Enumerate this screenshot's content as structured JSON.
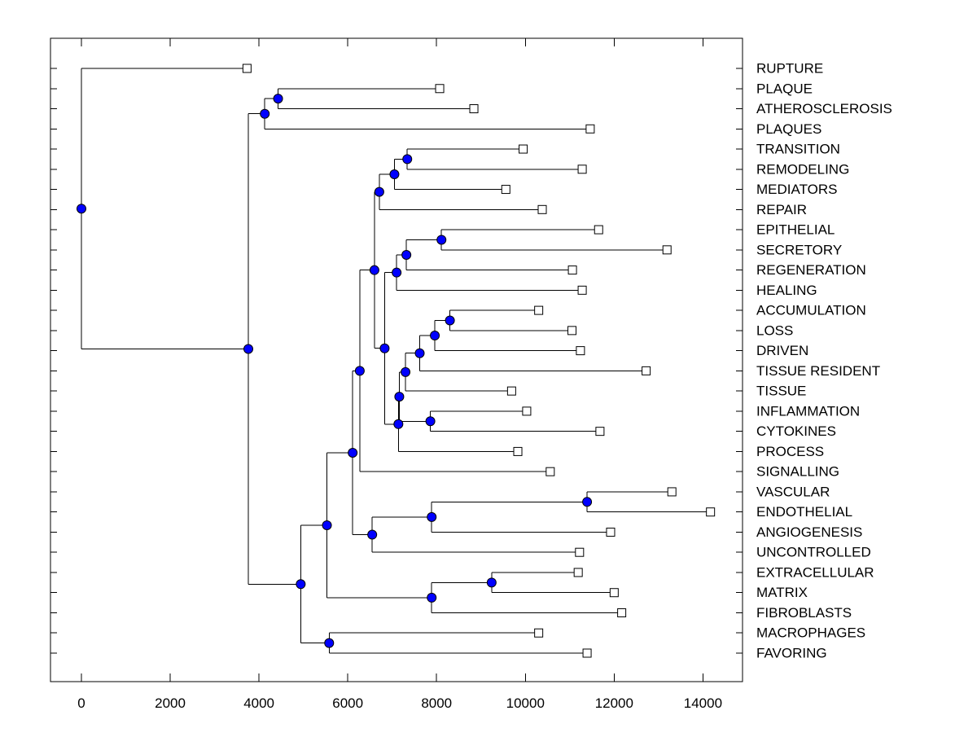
{
  "figure": {
    "kind": "phylogenetic-dendrogram",
    "background": "#ffffff"
  },
  "colors": {
    "line": "#000000",
    "box": "#000000",
    "internal_node_fill": "#0000ff",
    "internal_node_stroke": "#000000",
    "leaf_marker_fill": "#ffffff",
    "leaf_marker_stroke": "#000000",
    "text": "#000000"
  },
  "chart_data": {
    "type": "dendrogram",
    "orientation": "horizontal-right-labels",
    "title": "",
    "xlabel": "",
    "ylabel": "",
    "x_ticks": [
      0,
      2000,
      4000,
      6000,
      8000,
      10000,
      12000,
      14000
    ],
    "x_tick_labels": [
      "0",
      "2000",
      "4000",
      "6000",
      "8000",
      "10000",
      "12000",
      "14000"
    ],
    "xlim": [
      -760,
      14900
    ],
    "grid": false,
    "leaf_order_top_to_bottom": [
      "RUPTURE",
      "PLAQUE",
      "ATHEROSCLEROSIS",
      "PLAQUES",
      "TRANSITION",
      "REMODELING",
      "MEDIATORS",
      "REPAIR",
      "EPITHELIAL",
      "SECRETORY",
      "REGENERATION",
      "HEALING",
      "ACCUMULATION",
      "LOSS",
      "DRIVEN",
      "TISSUE RESIDENT",
      "TISSUE",
      "INFLAMMATION",
      "CYTOKINES",
      "PROCESS",
      "SIGNALLING",
      "VASCULAR",
      "ENDOTHELIAL",
      "ANGIOGENESIS",
      "UNCONTROLLED",
      "EXTRACELLULAR",
      "MATRIX",
      "FIBROBLASTS",
      "MACROPHAGES",
      "FAVORING"
    ],
    "tree": {
      "x": 0,
      "children": [
        {
          "label": "RUPTURE",
          "x": 3730
        },
        {
          "x": 3760,
          "children": [
            {
              "x": 4130,
              "children": [
                {
                  "x": 4430,
                  "children": [
                    {
                      "label": "PLAQUE",
                      "x": 8070
                    },
                    {
                      "label": "ATHEROSCLEROSIS",
                      "x": 8840
                    }
                  ]
                },
                {
                  "label": "PLAQUES",
                  "x": 11460
                }
              ]
            },
            {
              "x": 4940,
              "children": [
                {
                  "x": 5530,
                  "children": [
                    {
                      "x": 6110,
                      "children": [
                        {
                          "x": 6270,
                          "children": [
                            {
                              "x": 6600,
                              "children": [
                                {
                                  "x": 6710,
                                  "children": [
                                    {
                                      "x": 7050,
                                      "children": [
                                        {
                                          "x": 7340,
                                          "children": [
                                            {
                                              "label": "TRANSITION",
                                              "x": 9950
                                            },
                                            {
                                              "label": "REMODELING",
                                              "x": 11280
                                            }
                                          ]
                                        },
                                        {
                                          "label": "MEDIATORS",
                                          "x": 9560
                                        }
                                      ]
                                    },
                                    {
                                      "label": "REPAIR",
                                      "x": 10380
                                    }
                                  ]
                                },
                                {
                                  "x": 6830,
                                  "children": [
                                    {
                                      "x": 7100,
                                      "children": [
                                        {
                                          "x": 7320,
                                          "children": [
                                            {
                                              "x": 8110,
                                              "children": [
                                                {
                                                  "label": "EPITHELIAL",
                                                  "x": 11650
                                                },
                                                {
                                                  "label": "SECRETORY",
                                                  "x": 13190
                                                }
                                              ]
                                            },
                                            {
                                              "label": "REGENERATION",
                                              "x": 11060
                                            }
                                          ]
                                        },
                                        {
                                          "label": "HEALING",
                                          "x": 11280
                                        }
                                      ]
                                    },
                                    {
                                      "x": 7140,
                                      "children": [
                                        {
                                          "x": 7160,
                                          "children": [
                                            {
                                              "x": 7300,
                                              "children": [
                                                {
                                                  "x": 7620,
                                                  "children": [
                                                    {
                                                      "x": 7960,
                                                      "children": [
                                                        {
                                                          "x": 8300,
                                                          "children": [
                                                            {
                                                              "label": "ACCUMULATION",
                                                              "x": 10300
                                                            },
                                                            {
                                                              "label": "LOSS",
                                                              "x": 11050
                                                            }
                                                          ]
                                                        },
                                                        {
                                                          "label": "DRIVEN",
                                                          "x": 11240
                                                        }
                                                      ]
                                                    },
                                                    {
                                                      "label": "TISSUE RESIDENT",
                                                      "x": 12720
                                                    }
                                                  ]
                                                },
                                                {
                                                  "label": "TISSUE",
                                                  "x": 9690
                                                }
                                              ]
                                            },
                                            {
                                              "x": 7860,
                                              "children": [
                                                {
                                                  "label": "INFLAMMATION",
                                                  "x": 10030
                                                },
                                                {
                                                  "label": "CYTOKINES",
                                                  "x": 11680
                                                }
                                              ]
                                            }
                                          ]
                                        },
                                        {
                                          "label": "PROCESS",
                                          "x": 9830
                                        }
                                      ]
                                    }
                                  ]
                                }
                              ]
                            },
                            {
                              "label": "SIGNALLING",
                              "x": 10560
                            }
                          ]
                        },
                        {
                          "x": 6550,
                          "children": [
                            {
                              "x": 7890,
                              "children": [
                                {
                                  "x": 11390,
                                  "children": [
                                    {
                                      "label": "VASCULAR",
                                      "x": 13300
                                    },
                                    {
                                      "label": "ENDOTHELIAL",
                                      "x": 14170
                                    }
                                  ]
                                },
                                {
                                  "label": "ANGIOGENESIS",
                                  "x": 11920
                                }
                              ]
                            },
                            {
                              "label": "UNCONTROLLED",
                              "x": 11220
                            }
                          ]
                        }
                      ]
                    },
                    {
                      "x": 7890,
                      "children": [
                        {
                          "x": 9240,
                          "children": [
                            {
                              "label": "EXTRACELLULAR",
                              "x": 11190
                            },
                            {
                              "label": "MATRIX",
                              "x": 12000
                            }
                          ]
                        },
                        {
                          "label": "FIBROBLASTS",
                          "x": 12170
                        }
                      ]
                    }
                  ]
                },
                {
                  "x": 5580,
                  "children": [
                    {
                      "label": "MACROPHAGES",
                      "x": 10300
                    },
                    {
                      "label": "FAVORING",
                      "x": 11390
                    }
                  ]
                }
              ]
            }
          ]
        }
      ]
    }
  }
}
